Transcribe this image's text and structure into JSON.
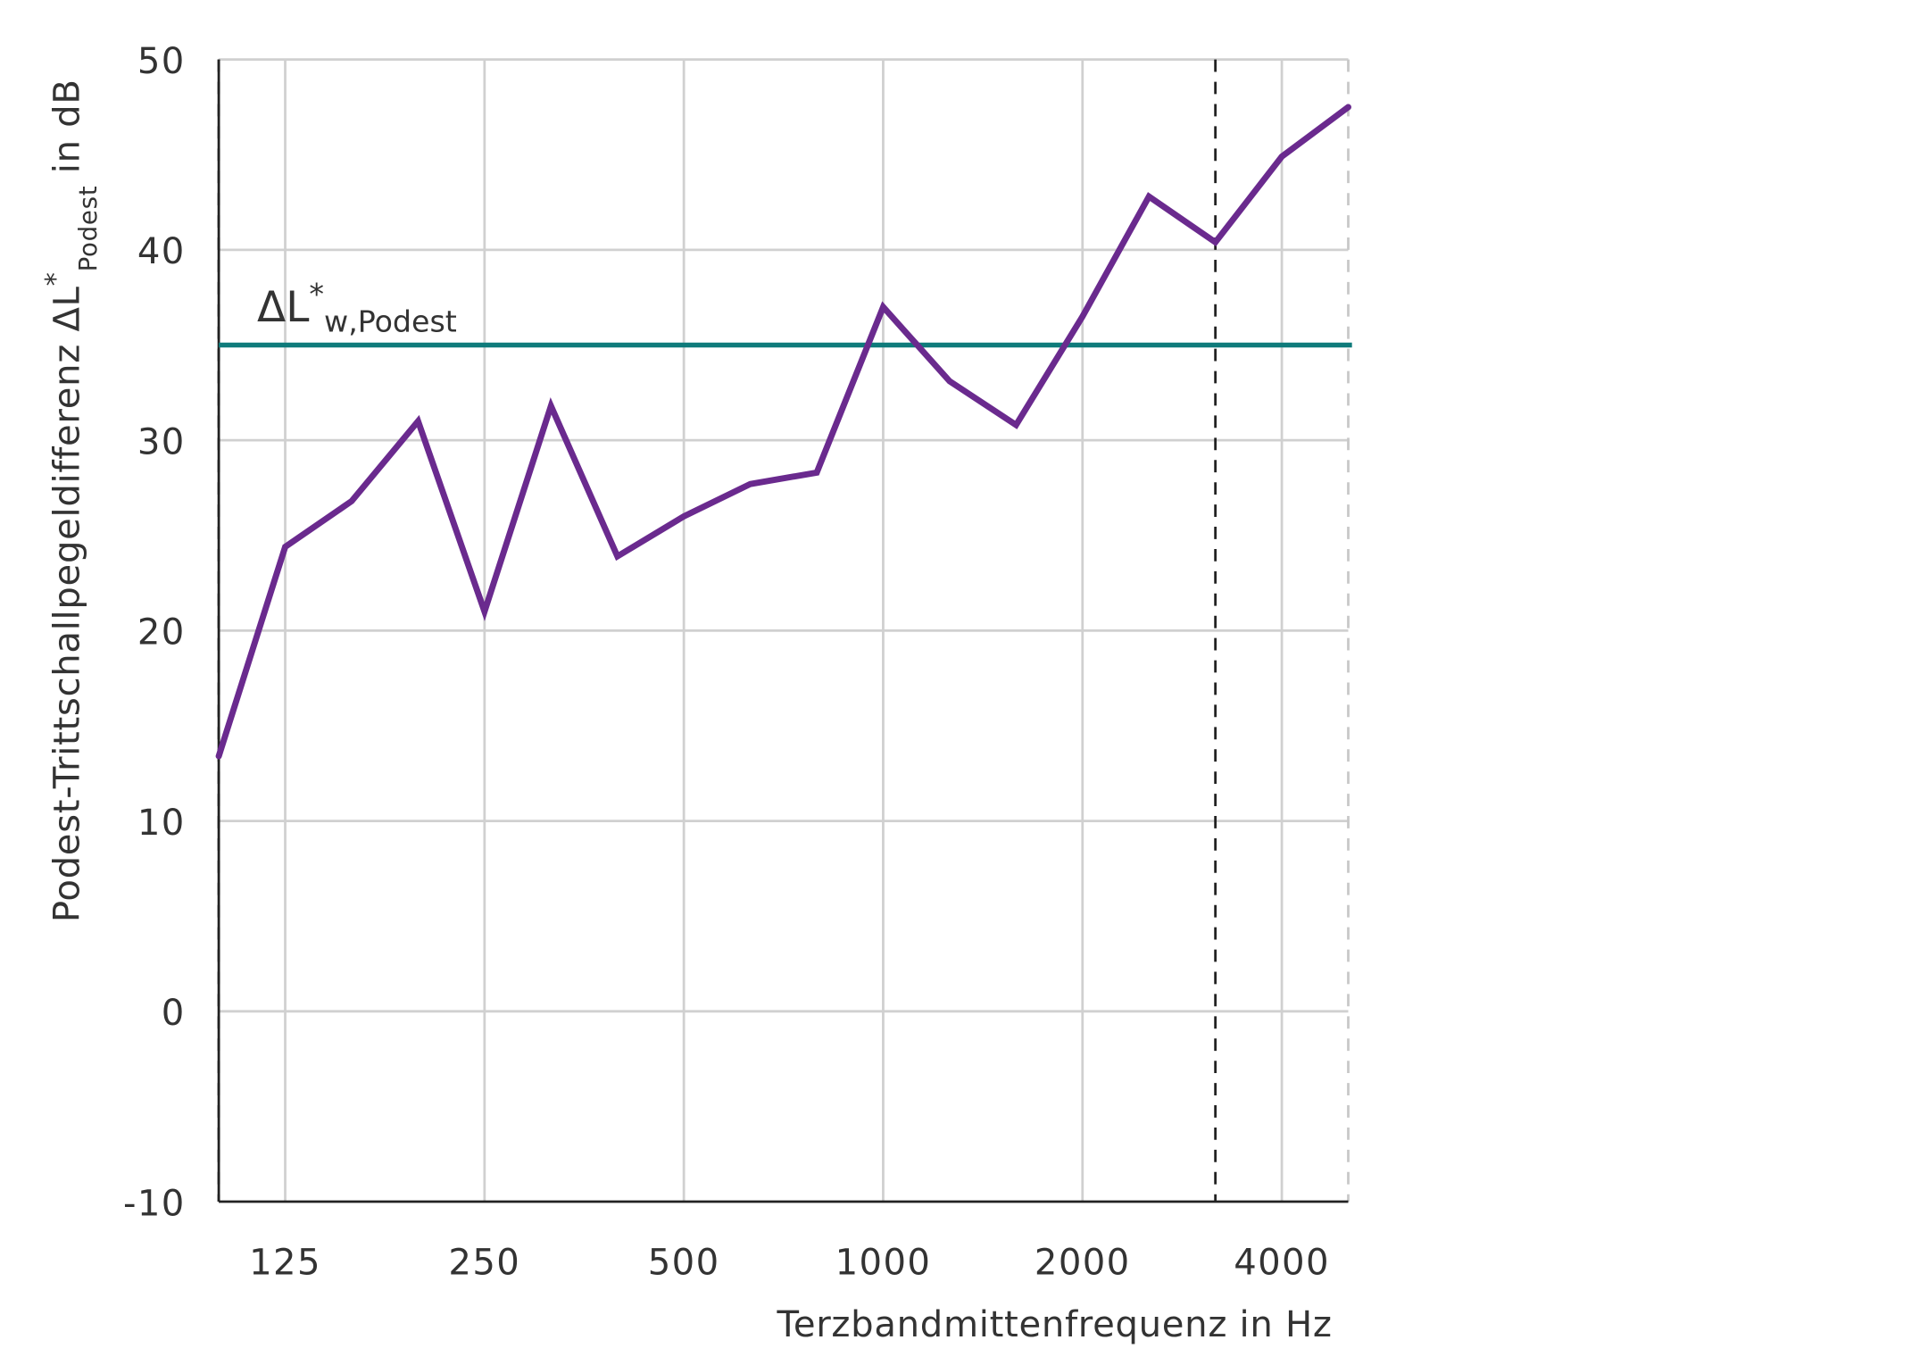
{
  "chart_data": {
    "type": "line",
    "title": "",
    "xlabel": "Terzbandmittenfrequenz in Hz",
    "ylabel": {
      "main": "Podest-Trittschallpegeldifferenz ΔL",
      "sup": "*",
      "sub": "Podest",
      "unit": " in dB"
    },
    "x_scale": "third-octave (log)",
    "x": [
      100,
      125,
      160,
      200,
      250,
      315,
      400,
      500,
      630,
      800,
      1000,
      1250,
      1600,
      2000,
      2500,
      3150,
      4000,
      5000
    ],
    "x_tick_labels": [
      "125",
      "250",
      "500",
      "1000",
      "2000",
      "4000"
    ],
    "x_tick_values": [
      125,
      250,
      500,
      1000,
      2000,
      4000
    ],
    "ylim": [
      -10,
      50
    ],
    "y_ticks": [
      -10,
      0,
      10,
      20,
      30,
      40,
      50
    ],
    "y_tick_labels": [
      "-10",
      "0",
      "10",
      "20",
      "30",
      "40",
      "50"
    ],
    "grid": true,
    "series": [
      {
        "name": "Podest-Trittschallpegeldifferenz",
        "color": "#6a2a8e",
        "values": [
          13.4,
          24.4,
          26.8,
          31.0,
          21.0,
          31.8,
          23.9,
          26.0,
          27.7,
          28.3,
          37.0,
          33.1,
          30.8,
          36.5,
          42.8,
          40.4,
          44.9,
          47.5
        ]
      }
    ],
    "reference_line": {
      "value": 35,
      "color": "#0f7b7b",
      "label_main": "ΔL",
      "label_sup": "*",
      "label_sub": "w,Podest"
    },
    "vertical_markers": [
      {
        "x": 100,
        "style": "dashed",
        "color": "#222222"
      },
      {
        "x": 3150,
        "style": "dashed",
        "color": "#222222"
      },
      {
        "x": 5000,
        "style": "dashed",
        "color": "#c8c8c8"
      }
    ]
  }
}
